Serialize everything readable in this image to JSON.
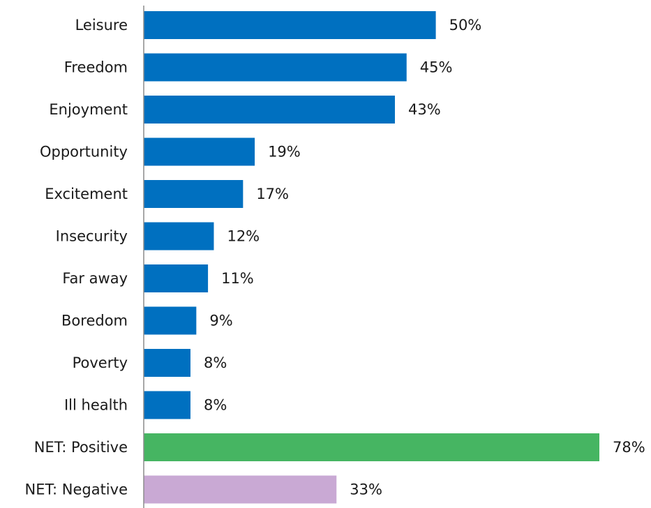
{
  "chart_data": {
    "type": "bar",
    "orientation": "horizontal",
    "categories": [
      "Leisure",
      "Freedom",
      "Enjoyment",
      "Opportunity",
      "Excitement",
      "Insecurity",
      "Far away",
      "Boredom",
      "Poverty",
      "Ill health",
      "NET: Positive",
      "NET: Negative"
    ],
    "values": [
      50,
      45,
      43,
      19,
      17,
      12,
      11,
      9,
      8,
      8,
      78,
      33
    ],
    "value_labels": [
      "50%",
      "45%",
      "43%",
      "19%",
      "17%",
      "12%",
      "11%",
      "9%",
      "8%",
      "8%",
      "78%",
      "33%"
    ],
    "bar_colors": [
      "#0070c0",
      "#0070c0",
      "#0070c0",
      "#0070c0",
      "#0070c0",
      "#0070c0",
      "#0070c0",
      "#0070c0",
      "#0070c0",
      "#0070c0",
      "#46b562",
      "#c9a9d4"
    ],
    "xlim": [
      0,
      78
    ],
    "grid": false,
    "legend": "none"
  }
}
